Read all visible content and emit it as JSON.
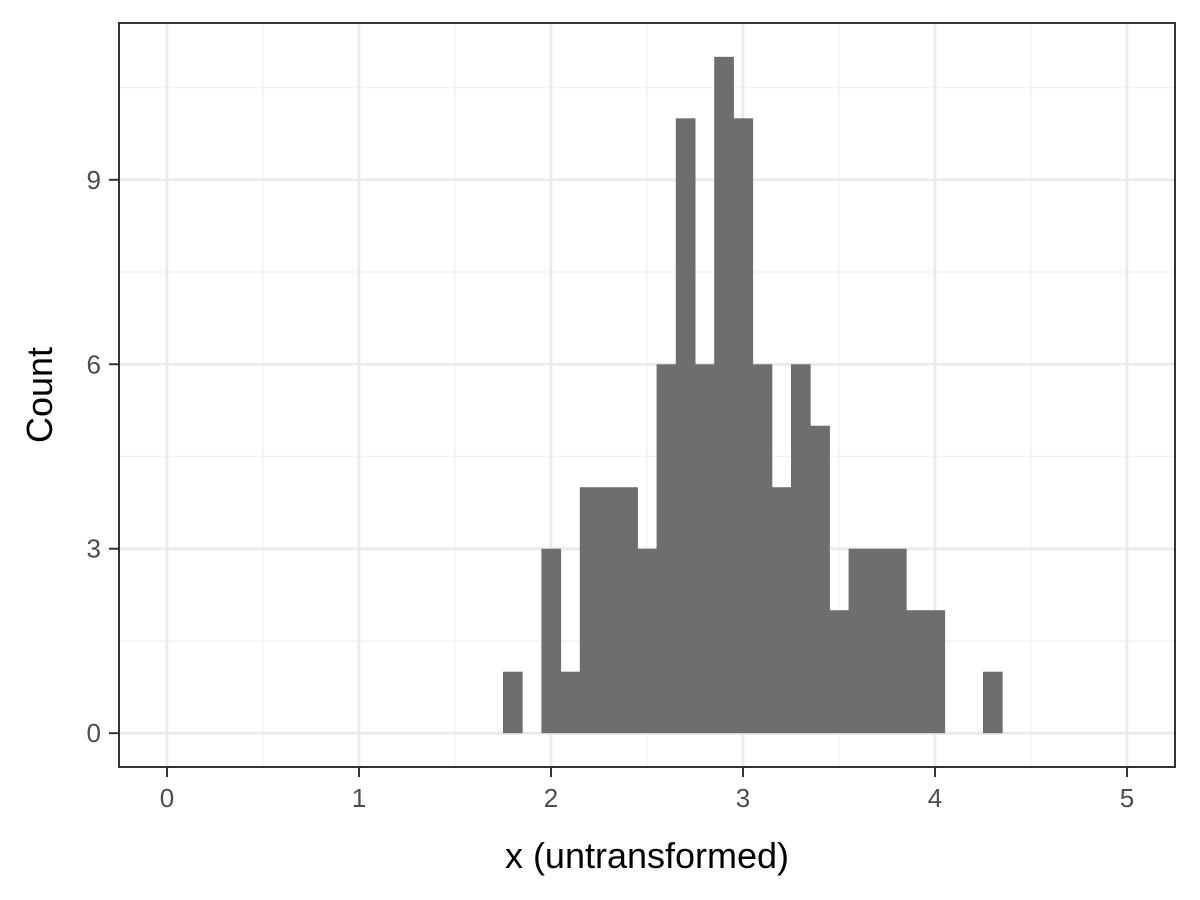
{
  "chart_data": {
    "type": "bar",
    "xlabel": "x (untransformed)",
    "ylabel": "Count",
    "xlim": [
      -0.25,
      5.25
    ],
    "ylim": [
      -0.55,
      11.55
    ],
    "x_ticks": [
      0,
      1,
      2,
      3,
      4,
      5
    ],
    "y_ticks": [
      0,
      3,
      6,
      9
    ],
    "x_tick_labels": [
      "0",
      "1",
      "2",
      "3",
      "4",
      "5"
    ],
    "y_tick_labels": [
      "0",
      "3",
      "6",
      "9"
    ],
    "bin_width": 0.1,
    "bins": [
      {
        "start": 1.75,
        "end": 1.85,
        "count": 1
      },
      {
        "start": 1.95,
        "end": 2.05,
        "count": 3
      },
      {
        "start": 2.05,
        "end": 2.15,
        "count": 1
      },
      {
        "start": 2.15,
        "end": 2.25,
        "count": 4
      },
      {
        "start": 2.25,
        "end": 2.35,
        "count": 4
      },
      {
        "start": 2.35,
        "end": 2.45,
        "count": 4
      },
      {
        "start": 2.45,
        "end": 2.55,
        "count": 3
      },
      {
        "start": 2.55,
        "end": 2.65,
        "count": 6
      },
      {
        "start": 2.65,
        "end": 2.75,
        "count": 10
      },
      {
        "start": 2.75,
        "end": 2.85,
        "count": 6
      },
      {
        "start": 2.85,
        "end": 2.95,
        "count": 11
      },
      {
        "start": 2.95,
        "end": 3.05,
        "count": 10
      },
      {
        "start": 3.05,
        "end": 3.15,
        "count": 6
      },
      {
        "start": 3.15,
        "end": 3.25,
        "count": 4
      },
      {
        "start": 3.25,
        "end": 3.35,
        "count": 6
      },
      {
        "start": 3.35,
        "end": 3.45,
        "count": 5
      },
      {
        "start": 3.45,
        "end": 3.55,
        "count": 2
      },
      {
        "start": 3.55,
        "end": 3.65,
        "count": 3
      },
      {
        "start": 3.65,
        "end": 3.75,
        "count": 3
      },
      {
        "start": 3.75,
        "end": 3.85,
        "count": 3
      },
      {
        "start": 3.85,
        "end": 3.95,
        "count": 2
      },
      {
        "start": 3.95,
        "end": 4.05,
        "count": 2
      },
      {
        "start": 4.25,
        "end": 4.35,
        "count": 1
      }
    ],
    "bar_color": "#6e6e6e",
    "grid": true,
    "grid_major_color": "#ebebeb",
    "grid_minor_color": "#f2f2f2",
    "panel_border_color": "#333333"
  }
}
